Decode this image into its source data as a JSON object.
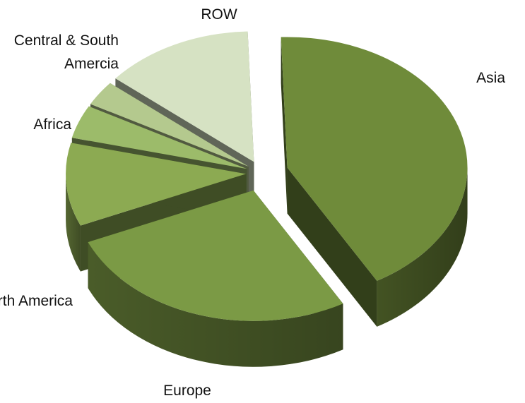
{
  "chart_data": {
    "type": "pie",
    "style": "3d-exploded",
    "title": "",
    "legend": "none",
    "categories": [
      "Asia",
      "Europe",
      "North America",
      "Africa",
      "Central & South America",
      "ROW"
    ],
    "values": [
      41,
      26,
      10,
      4,
      3,
      13
    ],
    "unit": "percent (estimated)",
    "labels": [
      {
        "slice": "Asia",
        "lines": [
          "Asia"
        ]
      },
      {
        "slice": "Europe",
        "lines": [
          "Europe"
        ]
      },
      {
        "slice": "North America",
        "lines": [
          "orth America"
        ]
      },
      {
        "slice": "Africa",
        "lines": [
          "Africa"
        ]
      },
      {
        "slice": "Central & South America",
        "lines": [
          "Central & South",
          "Amercia"
        ]
      },
      {
        "slice": "ROW",
        "lines": [
          "ROW"
        ]
      }
    ],
    "colors": {
      "Asia": "#6f8b3a",
      "Europe": "#7b9a45",
      "North America": "#8caa52",
      "Africa": "#9cbb6a",
      "Central & South America": "#b4c98e",
      "ROW": "#d6e2c3"
    }
  }
}
